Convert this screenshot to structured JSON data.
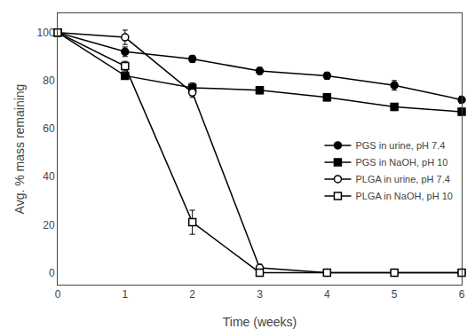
{
  "chart_data": {
    "type": "line",
    "xlabel": "Time (weeks)",
    "ylabel": "Avg. % mass remaining",
    "x": [
      0,
      1,
      2,
      3,
      4,
      5,
      6
    ],
    "series": [
      {
        "name": "PGS in urine, pH 7.4",
        "color": "#000000",
        "marker": "circle",
        "line_style": "solid",
        "values": [
          100,
          92,
          89,
          84,
          82,
          78,
          72
        ],
        "errors": [
          0,
          2,
          1.5,
          1.5,
          1.5,
          2,
          1.5
        ]
      },
      {
        "name": "PGS in NaOH, pH 10",
        "color": "#000000",
        "marker": "square",
        "line_style": "solid",
        "values": [
          100,
          82,
          77,
          76,
          73,
          69,
          67
        ],
        "errors": [
          0,
          1.5,
          2,
          1.5,
          1.5,
          1.5,
          1.5
        ]
      },
      {
        "name": "PLGA in urine, pH 7.4",
        "color": "#000000",
        "marker": "circle-open",
        "line_style": "solid",
        "values": [
          100,
          98,
          75,
          2,
          0,
          0,
          0
        ],
        "errors": [
          0,
          3,
          2,
          1.5,
          0,
          0,
          0
        ]
      },
      {
        "name": "PLGA in NaOH, pH 10",
        "color": "#000000",
        "marker": "square-open",
        "line_style": "solid",
        "values": [
          100,
          86,
          21,
          0,
          0,
          0,
          0
        ],
        "errors": [
          0,
          2,
          5,
          0,
          0,
          0,
          0
        ]
      }
    ],
    "xlim": [
      0,
      6
    ],
    "ylim": [
      -5,
      108
    ],
    "xticks": [
      0,
      1,
      2,
      3,
      4,
      5,
      6
    ],
    "yticks": [
      0,
      20,
      40,
      60,
      80,
      100
    ],
    "grid": false,
    "legend": "right"
  }
}
